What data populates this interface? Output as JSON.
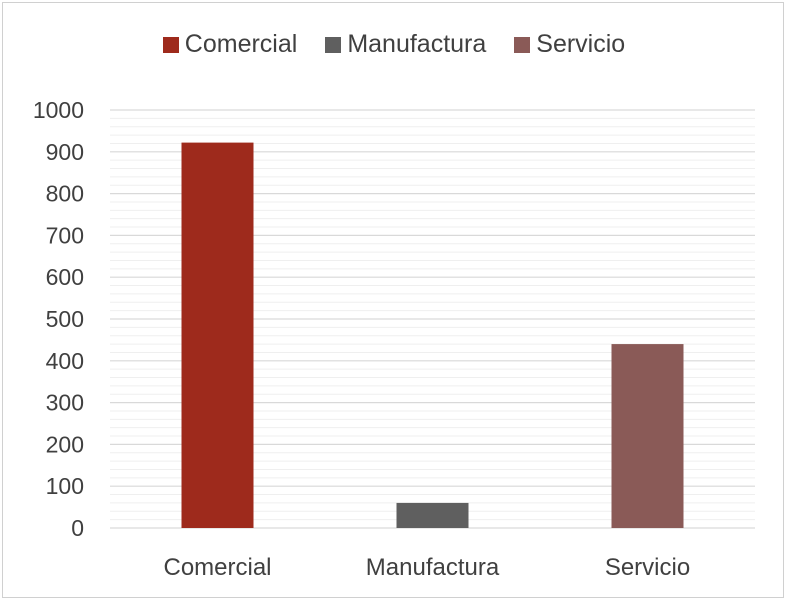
{
  "chart_data": {
    "type": "bar",
    "categories": [
      "Comercial",
      "Manufactura",
      "Servicio"
    ],
    "values": [
      922,
      60,
      440
    ],
    "colors": [
      "#9e2a1c",
      "#5f5f5f",
      "#8a5a57"
    ],
    "legend": [
      "Comercial",
      "Manufactura",
      "Servicio"
    ],
    "legend_position": "top",
    "ylim": [
      0,
      1000
    ],
    "yticks": [
      0,
      100,
      200,
      300,
      400,
      500,
      600,
      700,
      800,
      900,
      1000
    ],
    "grid": true
  }
}
